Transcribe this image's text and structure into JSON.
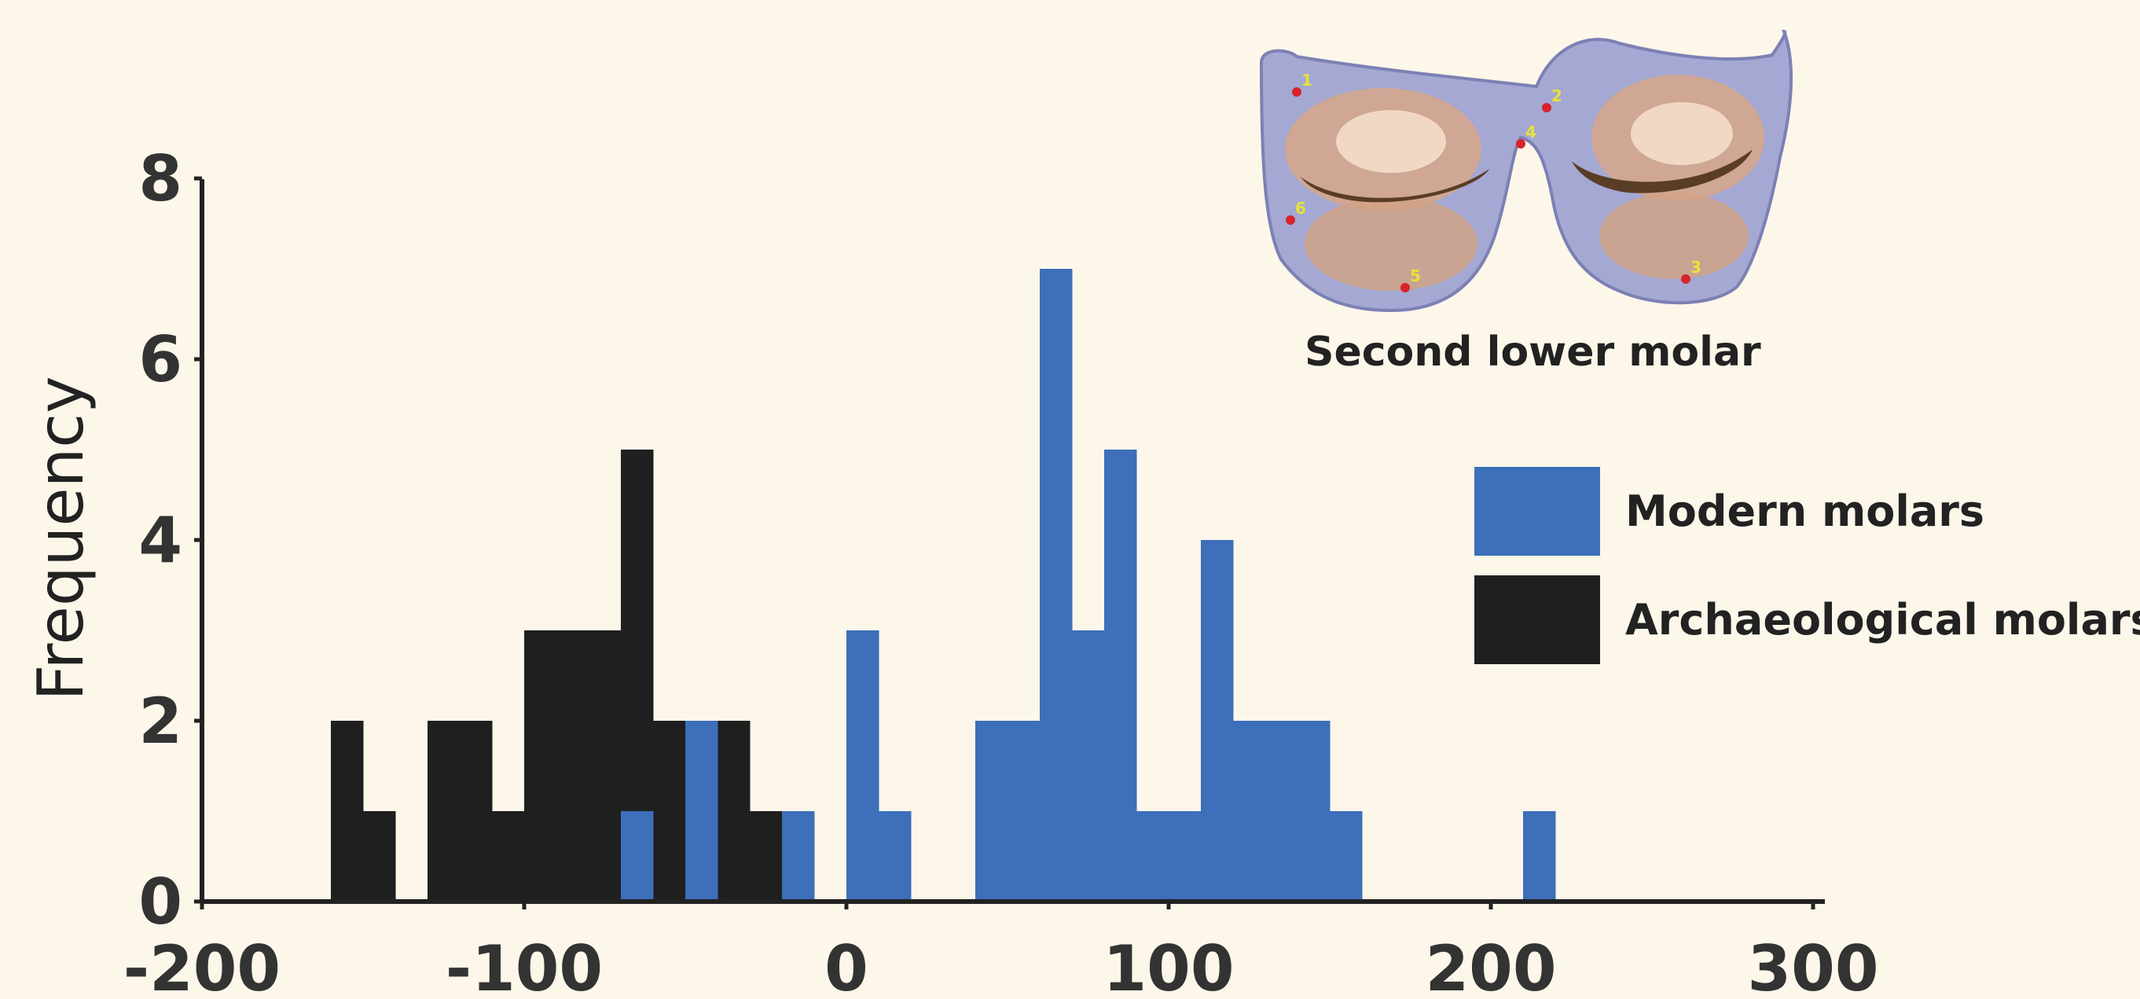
{
  "chart_data": {
    "type": "bar",
    "title": "",
    "xlabel": "",
    "ylabel": "Frequency",
    "xlim": [
      -200,
      300
    ],
    "ylim": [
      0,
      8
    ],
    "x_ticks": [
      "-200",
      "-100",
      "0",
      "100",
      "200",
      "300"
    ],
    "y_ticks": [
      "0",
      "2",
      "4",
      "6",
      "8"
    ],
    "bin_width": 10,
    "legend_position": "right",
    "series": [
      {
        "name": "Modern molars",
        "color": "#3d6fba",
        "bins": [
          {
            "x": -70,
            "value": 1
          },
          {
            "x": -50,
            "value": 2
          },
          {
            "x": -20,
            "value": 1
          },
          {
            "x": 0,
            "value": 3
          },
          {
            "x": 10,
            "value": 1
          },
          {
            "x": 40,
            "value": 2
          },
          {
            "x": 50,
            "value": 2
          },
          {
            "x": 60,
            "value": 7
          },
          {
            "x": 70,
            "value": 3
          },
          {
            "x": 80,
            "value": 5
          },
          {
            "x": 90,
            "value": 1
          },
          {
            "x": 100,
            "value": 1
          },
          {
            "x": 110,
            "value": 4
          },
          {
            "x": 120,
            "value": 2
          },
          {
            "x": 130,
            "value": 2
          },
          {
            "x": 140,
            "value": 2
          },
          {
            "x": 150,
            "value": 1
          },
          {
            "x": 210,
            "value": 1
          }
        ]
      },
      {
        "name": "Archaeological molars",
        "color": "#1f1f1f",
        "bins": [
          {
            "x": -160,
            "value": 2
          },
          {
            "x": -150,
            "value": 1
          },
          {
            "x": -130,
            "value": 2
          },
          {
            "x": -120,
            "value": 2
          },
          {
            "x": -110,
            "value": 1
          },
          {
            "x": -100,
            "value": 3
          },
          {
            "x": -90,
            "value": 3
          },
          {
            "x": -80,
            "value": 3
          },
          {
            "x": -70,
            "value": 5
          },
          {
            "x": -60,
            "value": 2
          },
          {
            "x": -50,
            "value": 1
          },
          {
            "x": -40,
            "value": 2
          },
          {
            "x": -30,
            "value": 1
          }
        ]
      }
    ]
  },
  "inset": {
    "caption": "Second lower molar",
    "landmarks": [
      "1",
      "2",
      "3",
      "4",
      "5",
      "6"
    ]
  }
}
